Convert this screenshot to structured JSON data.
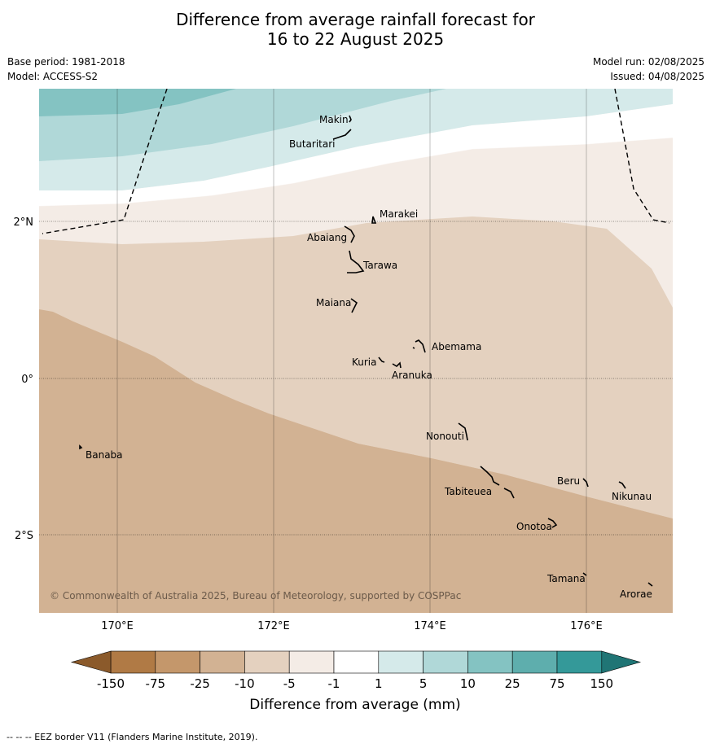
{
  "title_line1": "Difference from average rainfall forecast for",
  "title_line2": "16 to 22 August 2025",
  "base_period": "Base period: 1981-2018",
  "model": "Model: ACCESS-S2",
  "model_run": "Model run: 02/08/2025",
  "issued": "Issued: 04/08/2025",
  "copyright": "© Commonwealth of Australia 2025, Bureau of Meteorology, supported by COSPPac",
  "lon_labels": [
    "170°E",
    "172°E",
    "174°E",
    "176°E"
  ],
  "lat_labels": [
    "2°N",
    "0°",
    "2°S"
  ],
  "islands": [
    "Makin",
    "Butaritari",
    "Marakei",
    "Abaiang",
    "Tarawa",
    "Maiana",
    "Abemama",
    "Kuria",
    "Aranuka",
    "Nonouti",
    "Banaba",
    "Beru",
    "Nikunau",
    "Tabiteuea",
    "Onotoa",
    "Tamana",
    "Arorae"
  ],
  "legend": {
    "labels": [
      "-150",
      "-75",
      "-25",
      "-10",
      "-5",
      "-1",
      "1",
      "5",
      "10",
      "25",
      "75",
      "150"
    ],
    "colors": [
      "#b07a45",
      "#c4976b",
      "#d2b293",
      "#e4d1bf",
      "#f4ece6",
      "#ffffff",
      "#d5eaea",
      "#b0d8d8",
      "#84c3c2",
      "#5eaead",
      "#349999"
    ],
    "end_colors": [
      "#8b5a2b",
      "#207575"
    ],
    "title": "Difference from average (mm)"
  },
  "footnote": "--  --  -- EEZ border V11 (Flanders Marine Institute, 2019)."
}
